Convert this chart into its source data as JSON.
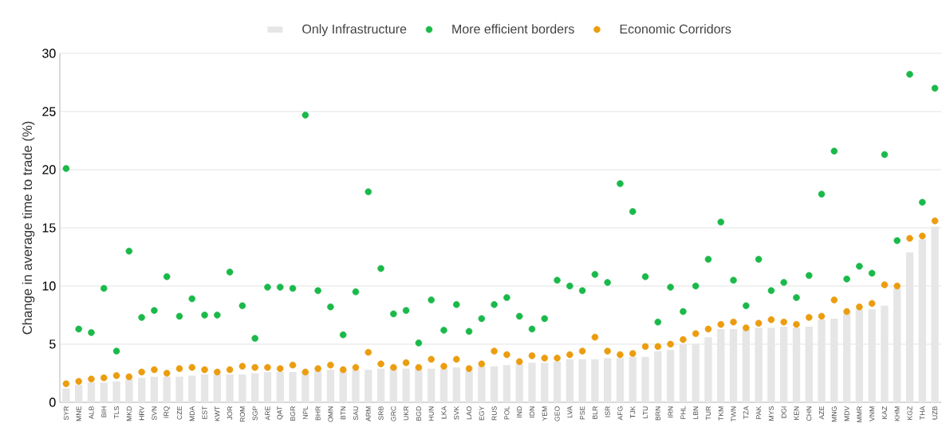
{
  "chart_data": {
    "type": "bar",
    "ylabel": "Change in average time to trade (%)",
    "categories": [
      "SYR",
      "MNE",
      "ALB",
      "BIH",
      "TLS",
      "MKD",
      "HRV",
      "SVN",
      "IRQ",
      "CZE",
      "MDA",
      "EST",
      "KWT",
      "JOR",
      "ROM",
      "SGP",
      "ARE",
      "QAT",
      "BGR",
      "NPL",
      "BHR",
      "OMN",
      "BTN",
      "SAU",
      "ARM",
      "SRB",
      "GRC",
      "UKR",
      "BGD",
      "HUN",
      "LKA",
      "SVK",
      "LAO",
      "EGY",
      "RUS",
      "POL",
      "IND",
      "IDN",
      "YEM",
      "GEO",
      "LVA",
      "PSE",
      "BLR",
      "ISR",
      "AFG",
      "TJK",
      "LTU",
      "BRN",
      "IRN",
      "PHL",
      "LBN",
      "TUR",
      "TKM",
      "TWN",
      "TZA",
      "PAK",
      "MYS",
      "DGI",
      "KEN",
      "CHN",
      "AZE",
      "MNG",
      "MDV",
      "MMR",
      "VNM",
      "KAZ",
      "KHM",
      "KGZ",
      "THA",
      "UZB"
    ],
    "series": [
      {
        "name": "Only Infrastructure",
        "color": "#e6e6e6",
        "values": [
          1.2,
          1.5,
          1.7,
          1.7,
          1.8,
          2.0,
          2.1,
          2.2,
          2.2,
          2.2,
          2.3,
          2.4,
          2.4,
          2.4,
          2.4,
          2.5,
          2.6,
          2.6,
          2.6,
          2.6,
          2.7,
          2.8,
          2.7,
          2.8,
          2.8,
          2.9,
          2.9,
          2.9,
          2.9,
          2.9,
          2.9,
          3.0,
          2.7,
          3.1,
          3.1,
          3.2,
          3.3,
          3.4,
          3.4,
          3.5,
          3.7,
          3.7,
          3.7,
          3.8,
          3.8,
          3.9,
          3.9,
          4.4,
          4.5,
          5.0,
          5.0,
          5.6,
          6.3,
          6.3,
          6.3,
          6.4,
          6.4,
          6.5,
          6.4,
          6.5,
          7.1,
          7.2,
          7.6,
          8.0,
          8.0,
          8.3,
          9.8,
          12.9,
          14.0,
          15.1
        ]
      },
      {
        "name": "More efficient borders",
        "type": "scatter",
        "color": "#1ab94a",
        "values": [
          20.1,
          6.3,
          6.0,
          9.8,
          4.4,
          13.0,
          7.3,
          7.9,
          10.8,
          7.4,
          8.9,
          7.5,
          7.5,
          11.2,
          8.3,
          5.5,
          9.9,
          9.9,
          9.8,
          24.7,
          9.6,
          8.2,
          5.8,
          9.5,
          18.1,
          11.5,
          7.6,
          7.9,
          5.1,
          8.8,
          6.2,
          8.4,
          6.1,
          7.2,
          8.4,
          9.0,
          7.4,
          6.3,
          7.2,
          10.5,
          10.0,
          9.6,
          11.0,
          10.3,
          18.8,
          16.4,
          10.8,
          6.9,
          9.9,
          7.8,
          10.0,
          12.3,
          15.5,
          10.5,
          8.3,
          12.3,
          9.6,
          10.3,
          9.0,
          10.9,
          17.9,
          21.6,
          10.6,
          11.7,
          11.1,
          21.3,
          13.9,
          28.2,
          17.2,
          27.0
        ]
      },
      {
        "name": "Economic Corridors",
        "type": "scatter",
        "color": "#eb9d0f",
        "values": [
          1.6,
          1.8,
          2.0,
          2.1,
          2.3,
          2.2,
          2.6,
          2.8,
          2.5,
          2.9,
          3.0,
          2.8,
          2.6,
          2.8,
          3.1,
          3.0,
          3.0,
          2.9,
          3.2,
          2.6,
          2.9,
          3.2,
          2.8,
          3.0,
          4.3,
          3.3,
          3.0,
          3.4,
          3.0,
          3.7,
          3.1,
          3.7,
          2.9,
          3.3,
          4.4,
          4.1,
          3.5,
          4.0,
          3.8,
          3.8,
          4.1,
          4.4,
          5.6,
          4.4,
          4.1,
          4.2,
          4.8,
          4.8,
          5.0,
          5.4,
          5.9,
          6.3,
          6.7,
          6.9,
          6.4,
          6.8,
          7.1,
          6.9,
          6.7,
          7.3,
          7.4,
          8.8,
          7.8,
          8.2,
          8.5,
          10.1,
          10.0,
          14.1,
          14.3,
          15.6
        ]
      }
    ],
    "ylim": [
      0,
      30
    ],
    "yticks": [
      0,
      5,
      10,
      15,
      20,
      25,
      30
    ],
    "grid": "y",
    "legend": "top",
    "marker": "circle"
  }
}
